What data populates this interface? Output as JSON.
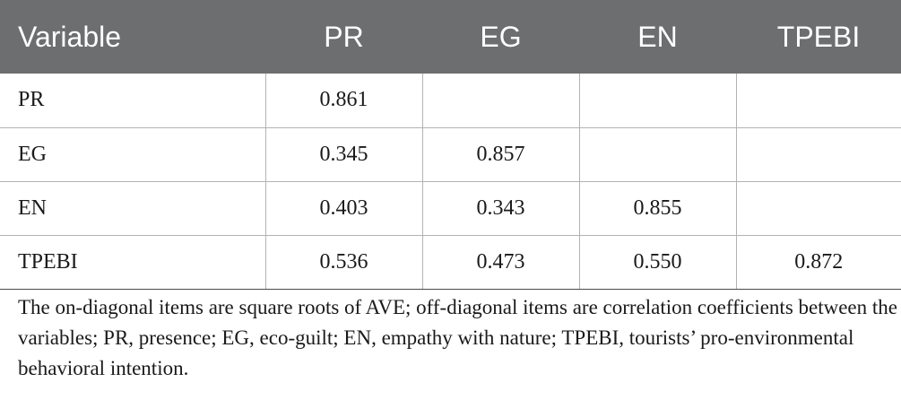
{
  "table": {
    "headers": [
      "Variable",
      "PR",
      "EG",
      "EN",
      "TPEBI"
    ],
    "rows": [
      {
        "variable": "PR",
        "cells": [
          "0.861",
          "",
          "",
          ""
        ]
      },
      {
        "variable": "EG",
        "cells": [
          "0.345",
          "0.857",
          "",
          ""
        ]
      },
      {
        "variable": "EN",
        "cells": [
          "0.403",
          "0.343",
          "0.855",
          ""
        ]
      },
      {
        "variable": "TPEBI",
        "cells": [
          "0.536",
          "0.473",
          "0.550",
          "0.872"
        ]
      }
    ]
  },
  "note": "The on-diagonal items are square roots of AVE; off-diagonal items are correlation coefficients between the variables; PR, presence; EG, eco-guilt; EN, empathy with nature; TPEBI, tourists’ pro-environmental behavioral intention.",
  "colors": {
    "header_bg": "#6d6e70",
    "header_text": "#ffffff",
    "grid_line": "#b3b3b3"
  }
}
